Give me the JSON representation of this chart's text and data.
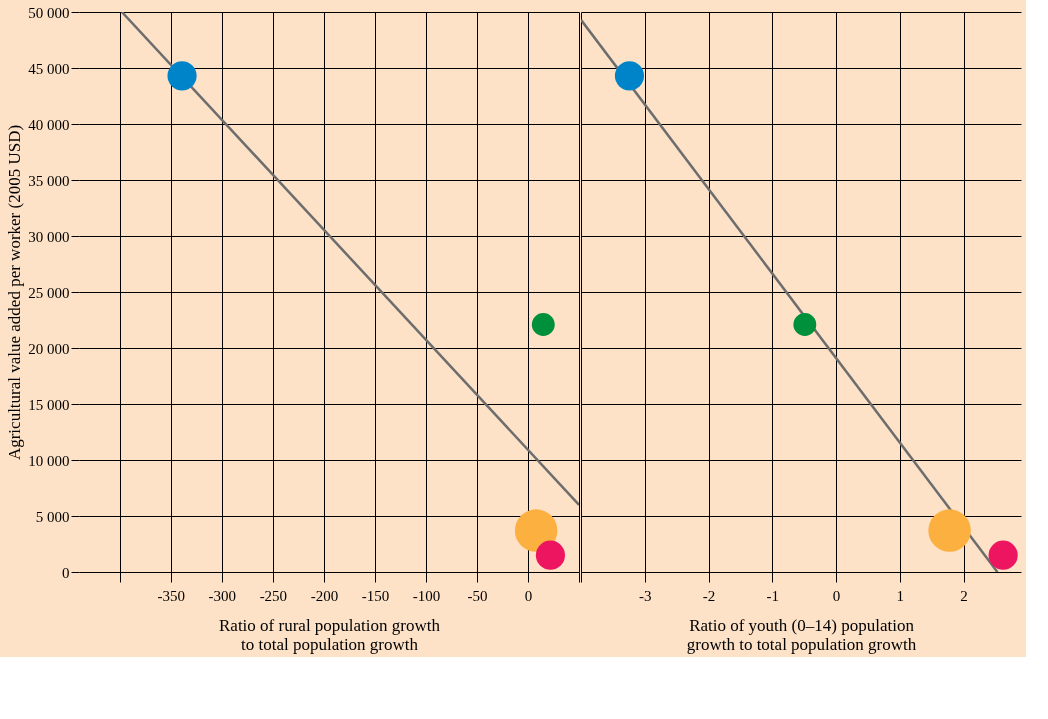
{
  "chart_data": [
    {
      "type": "bubble",
      "xlabel": "Ratio of rural population growth\nto total population growth",
      "ylabel": "Agricultural value added per worker (2005 USD)",
      "xlim": [
        -440,
        50
      ],
      "xticks": [
        {
          "value": -400,
          "label": null
        },
        -350,
        -300,
        -250,
        -200,
        -150,
        -100,
        -50,
        0,
        {
          "value": 50,
          "label": null
        }
      ],
      "ylim": [
        0,
        50000
      ],
      "yticks": [
        {
          "value": 0,
          "label": "0"
        },
        {
          "value": 5000,
          "label": "5 000"
        },
        {
          "value": 10000,
          "label": "10 000"
        },
        {
          "value": 15000,
          "label": "15 000"
        },
        {
          "value": 20000,
          "label": "20 000"
        },
        {
          "value": 25000,
          "label": "25 000"
        },
        {
          "value": 30000,
          "label": "30 000"
        },
        {
          "value": 35000,
          "label": "35 000"
        },
        {
          "value": 40000,
          "label": "40 000"
        },
        {
          "value": 45000,
          "label": "45 000"
        },
        {
          "value": 50000,
          "label": "50 000"
        }
      ],
      "grid": true,
      "series": [
        {
          "x": [
            -339,
            15,
            8,
            22
          ],
          "values": [
            44300,
            22100,
            3700,
            1500
          ],
          "sizes": [
            0.47,
            0.29,
            1,
            0.47
          ],
          "colors": [
            "#0084c9",
            "#008f3b",
            "#fbb040",
            "#ed1460"
          ]
        },
        {
          "type": "line",
          "x": [
            -398,
            50
          ],
          "values": [
            50000,
            6000
          ],
          "color": "#6d6d6d"
        }
      ]
    },
    {
      "type": "bubble",
      "xlabel": "Ratio of youth (0–14) population\ngrowth to total population growth",
      "xlim": [
        -4,
        2.9
      ],
      "xticks": [
        {
          "value": -4,
          "label": null
        },
        -3,
        -2,
        -1,
        0,
        1,
        2
      ],
      "ylim": [
        0,
        50000
      ],
      "yticks": [
        0,
        5000,
        10000,
        15000,
        20000,
        25000,
        30000,
        35000,
        40000,
        45000,
        50000
      ],
      "grid": true,
      "tick_labels": "x",
      "series": [
        {
          "x": [
            -3.24,
            -0.49,
            1.78,
            2.62
          ],
          "values": [
            44300,
            22100,
            3700,
            1500
          ],
          "sizes": [
            0.47,
            0.29,
            1,
            0.47
          ],
          "colors": [
            "#0084c9",
            "#008f3b",
            "#fbb040",
            "#ed1460"
          ]
        },
        {
          "type": "line",
          "x": [
            -4,
            2.53
          ],
          "values": [
            49300,
            0
          ],
          "color": "#6d6d6d"
        }
      ]
    }
  ]
}
